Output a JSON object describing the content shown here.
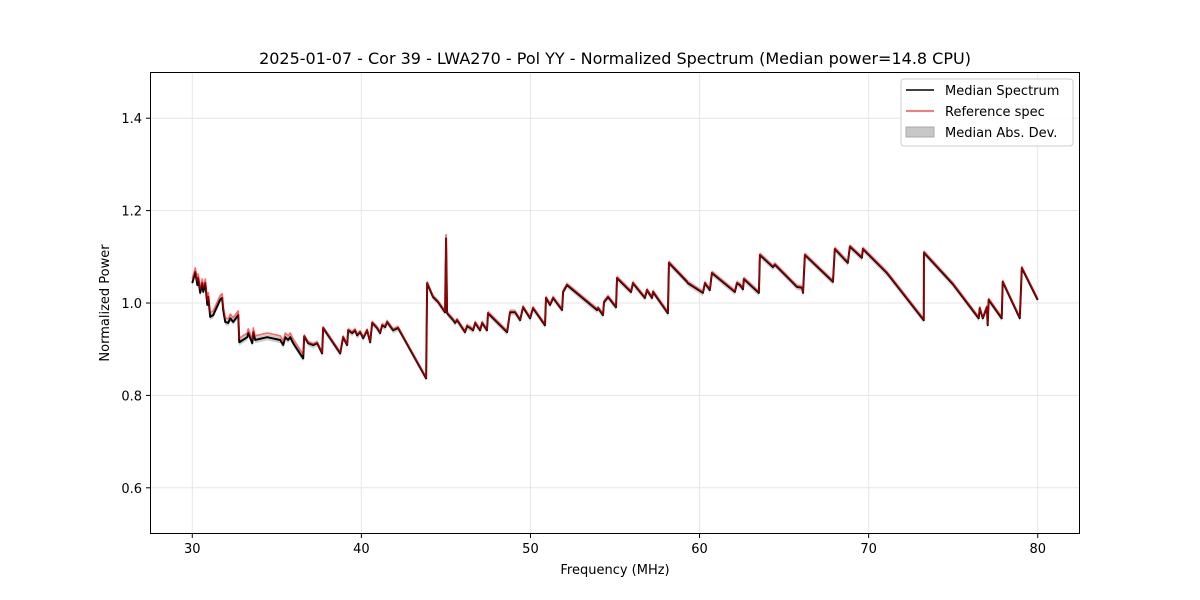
{
  "chart_data": {
    "type": "line",
    "title": "2025-01-07 - Cor 39 - LWA270 - Pol YY - Normalized Spectrum (Median power=14.8 CPU)",
    "xlabel": "Frequency (MHz)",
    "ylabel": "Normalized Power",
    "xlim": [
      27.5,
      82.5
    ],
    "ylim": [
      0.5,
      1.5
    ],
    "xticks": [
      30,
      40,
      50,
      60,
      70,
      80
    ],
    "xtick_labels": [
      "30",
      "40",
      "50",
      "60",
      "70",
      "80"
    ],
    "yticks": [
      0.6,
      0.8,
      1.0,
      1.2,
      1.4
    ],
    "ytick_labels": [
      "0.6",
      "0.8",
      "1.0",
      "1.2",
      "1.4"
    ],
    "grid": true,
    "legend_position": "top-right",
    "legend": [
      "Median Spectrum",
      "Reference spec",
      "Median Abs. Dev."
    ],
    "colors": {
      "median": "#000000",
      "reference": "#ff0000",
      "mad": "#b0b0b0",
      "grid": "#e6e6e6"
    },
    "median_spectrum": [
      [
        30.0,
        1.043
      ],
      [
        30.18,
        1.067
      ],
      [
        30.3,
        1.039
      ],
      [
        30.35,
        1.054
      ],
      [
        30.47,
        1.022
      ],
      [
        30.59,
        1.043
      ],
      [
        30.65,
        1.024
      ],
      [
        30.77,
        1.043
      ],
      [
        30.89,
        0.996
      ],
      [
        30.95,
        1.013
      ],
      [
        31.06,
        0.97
      ],
      [
        31.24,
        0.974
      ],
      [
        31.65,
        1.007
      ],
      [
        31.77,
        1.011
      ],
      [
        31.83,
        0.985
      ],
      [
        31.95,
        0.959
      ],
      [
        32.13,
        0.957
      ],
      [
        32.25,
        0.967
      ],
      [
        32.42,
        0.959
      ],
      [
        32.72,
        0.974
      ],
      [
        32.78,
        0.915
      ],
      [
        33.25,
        0.926
      ],
      [
        33.31,
        0.935
      ],
      [
        33.55,
        0.913
      ],
      [
        33.61,
        0.937
      ],
      [
        33.72,
        0.92
      ],
      [
        34.43,
        0.926
      ],
      [
        35.2,
        0.92
      ],
      [
        35.38,
        0.909
      ],
      [
        35.5,
        0.926
      ],
      [
        35.67,
        0.92
      ],
      [
        35.79,
        0.926
      ],
      [
        35.97,
        0.913
      ],
      [
        36.56,
        0.88
      ],
      [
        36.62,
        0.928
      ],
      [
        36.86,
        0.913
      ],
      [
        37.15,
        0.909
      ],
      [
        37.39,
        0.913
      ],
      [
        37.68,
        0.891
      ],
      [
        37.74,
        0.946
      ],
      [
        38.75,
        0.891
      ],
      [
        38.92,
        0.926
      ],
      [
        39.16,
        0.909
      ],
      [
        39.22,
        0.941
      ],
      [
        39.46,
        0.935
      ],
      [
        39.63,
        0.941
      ],
      [
        39.75,
        0.93
      ],
      [
        39.93,
        0.937
      ],
      [
        40.11,
        0.924
      ],
      [
        40.34,
        0.941
      ],
      [
        40.52,
        0.915
      ],
      [
        40.64,
        0.957
      ],
      [
        40.93,
        0.946
      ],
      [
        41.11,
        0.935
      ],
      [
        41.23,
        0.952
      ],
      [
        41.41,
        0.948
      ],
      [
        41.52,
        0.959
      ],
      [
        41.88,
        0.941
      ],
      [
        42.17,
        0.946
      ],
      [
        43.83,
        0.837
      ],
      [
        43.89,
        1.043
      ],
      [
        44.24,
        1.013
      ],
      [
        44.54,
        1.002
      ],
      [
        44.95,
        0.98
      ],
      [
        45.01,
        1.14
      ],
      [
        45.07,
        0.978
      ],
      [
        45.43,
        0.963
      ],
      [
        45.54,
        0.957
      ],
      [
        45.66,
        0.963
      ],
      [
        46.13,
        0.937
      ],
      [
        46.25,
        0.95
      ],
      [
        46.43,
        0.946
      ],
      [
        46.61,
        0.941
      ],
      [
        46.73,
        0.957
      ],
      [
        47.02,
        0.941
      ],
      [
        47.14,
        0.957
      ],
      [
        47.43,
        0.941
      ],
      [
        47.49,
        0.978
      ],
      [
        48.62,
        0.937
      ],
      [
        48.79,
        0.98
      ],
      [
        49.09,
        0.98
      ],
      [
        49.39,
        0.963
      ],
      [
        49.56,
        0.991
      ],
      [
        49.98,
        0.967
      ],
      [
        50.15,
        0.989
      ],
      [
        50.86,
        0.952
      ],
      [
        50.92,
        1.011
      ],
      [
        51.16,
        0.996
      ],
      [
        51.34,
        1.011
      ],
      [
        51.87,
        0.985
      ],
      [
        51.93,
        1.024
      ],
      [
        52.16,
        1.039
      ],
      [
        52.52,
        1.028
      ],
      [
        53.94,
        0.985
      ],
      [
        54.0,
        0.989
      ],
      [
        54.29,
        0.974
      ],
      [
        54.35,
        1.002
      ],
      [
        54.59,
        1.013
      ],
      [
        55.06,
        0.991
      ],
      [
        55.12,
        1.054
      ],
      [
        55.95,
        1.024
      ],
      [
        56.06,
        1.043
      ],
      [
        56.77,
        1.011
      ],
      [
        56.89,
        1.028
      ],
      [
        57.19,
        1.011
      ],
      [
        57.25,
        1.024
      ],
      [
        58.13,
        0.978
      ],
      [
        58.19,
        1.087
      ],
      [
        59.26,
        1.046
      ],
      [
        59.31,
        1.043
      ],
      [
        60.2,
        1.022
      ],
      [
        60.32,
        1.043
      ],
      [
        60.61,
        1.028
      ],
      [
        60.73,
        1.065
      ],
      [
        62.09,
        1.024
      ],
      [
        62.21,
        1.043
      ],
      [
        62.39,
        1.039
      ],
      [
        62.57,
        1.03
      ],
      [
        62.62,
        1.052
      ],
      [
        63.51,
        1.022
      ],
      [
        63.57,
        1.104
      ],
      [
        64.34,
        1.078
      ],
      [
        64.46,
        1.083
      ],
      [
        65.76,
        1.035
      ],
      [
        66.06,
        1.033
      ],
      [
        66.12,
        1.022
      ],
      [
        66.23,
        1.104
      ],
      [
        67.89,
        1.046
      ],
      [
        68.0,
        1.117
      ],
      [
        68.77,
        1.087
      ],
      [
        68.89,
        1.122
      ],
      [
        69.6,
        1.098
      ],
      [
        69.66,
        1.117
      ],
      [
        71.08,
        1.065
      ],
      [
        73.26,
        0.963
      ],
      [
        73.27,
        1.109
      ],
      [
        74.98,
        1.041
      ],
      [
        76.51,
        0.967
      ],
      [
        76.57,
        0.989
      ],
      [
        76.75,
        0.967
      ],
      [
        76.99,
        0.991
      ],
      [
        77.04,
        0.952
      ],
      [
        77.1,
        1.007
      ],
      [
        77.87,
        0.967
      ],
      [
        77.93,
        1.046
      ],
      [
        78.94,
        0.967
      ],
      [
        79.06,
        1.076
      ],
      [
        80.0,
        1.007
      ]
    ],
    "reference_offset": {
      "below_36_6_MHz": 0.009,
      "above": 0.002,
      "spike_45MHz_peak": 1.148
    },
    "median_abs_dev": 0.007
  }
}
